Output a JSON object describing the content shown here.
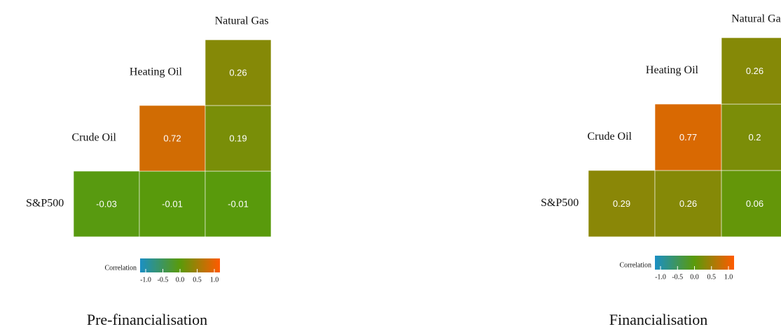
{
  "chart_data": [
    {
      "type": "heatmap",
      "title": "Pre-financialisation",
      "labels": [
        "S&P500",
        "Crude Oil",
        "Heating Oil",
        "Natural Gas"
      ],
      "values": [
        [
          -0.03,
          -0.01,
          -0.01
        ],
        [
          0.72,
          0.19
        ],
        [
          0.26
        ]
      ],
      "colors": [
        "#1b8fc4",
        "#5a9a0a",
        "#ff5a00"
      ],
      "legend_title": "Correlation",
      "zlim": [
        -1,
        1
      ],
      "zticks": [
        {
          "value": -1,
          "label": "-1.0"
        },
        {
          "value": -0.5,
          "label": "-0.5"
        },
        {
          "value": 0,
          "label": "0.0"
        },
        {
          "value": 0.5,
          "label": "0.5"
        },
        {
          "value": 1,
          "label": "1.0"
        }
      ]
    },
    {
      "type": "heatmap",
      "title": "Financialisation",
      "labels": [
        "S&P500",
        "Crude Oil",
        "Heating Oil",
        "Natural Gas"
      ],
      "values": [
        [
          0.29,
          0.26,
          0.06
        ],
        [
          0.77,
          0.2
        ],
        [
          0.26
        ]
      ],
      "colors": [
        "#1b8fc4",
        "#5a9a0a",
        "#ff5a00"
      ],
      "legend_title": "Correlation",
      "zlim": [
        -1,
        1
      ],
      "zticks": [
        {
          "value": -1,
          "label": "-1.0"
        },
        {
          "value": -0.5,
          "label": "-0.5"
        },
        {
          "value": 0,
          "label": "0.0"
        },
        {
          "value": 0.5,
          "label": "0.5"
        },
        {
          "value": 1,
          "label": "1.0"
        }
      ]
    }
  ]
}
